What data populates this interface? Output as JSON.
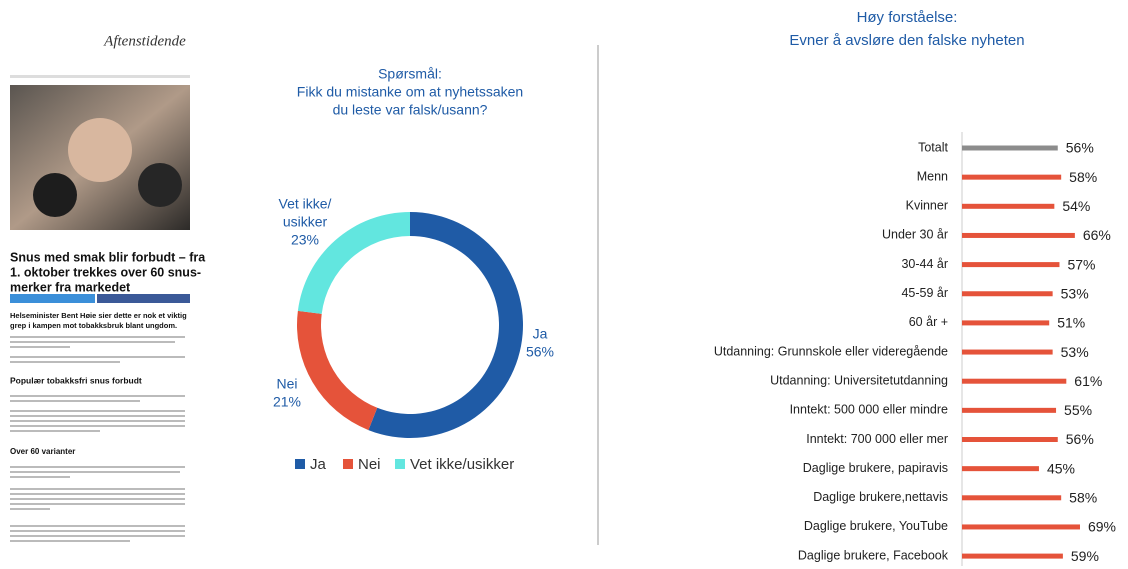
{
  "article": {
    "masthead": "Aftenstidende",
    "headline": [
      "Snus med smak blir forbudt – fra",
      "1. oktober trekkes over 60 snus-",
      "merker fra markedet"
    ],
    "lead": [
      "Helseminister Bent Høie sier dette er nok et viktig",
      "grep i kampen mot tobakksbruk blant ungdom."
    ],
    "subheads": [
      "Populær tobakksfri snus forbudt",
      "Over 60 varianter"
    ]
  },
  "chart_data": [
    {
      "type": "donut",
      "title": [
        "Spørsmål:",
        "Fikk du mistanke om at nyhetssaken",
        "du leste var falsk/usann?"
      ],
      "categories": [
        "Ja",
        "Nei",
        "Vet ikke/usikker"
      ],
      "category_labels": [
        [
          "Ja"
        ],
        [
          "Nei"
        ],
        [
          "Vet ikke/",
          "usikker"
        ]
      ],
      "values": [
        56,
        21,
        23
      ],
      "value_labels": [
        "56%",
        "21%",
        "23%"
      ],
      "colors": [
        "#1f5ba6",
        "#e5533a",
        "#62e6df"
      ],
      "legend": "bottom"
    },
    {
      "type": "barh",
      "title": [
        "Høy forståelse:",
        "Evner å avsløre den falske nyheten"
      ],
      "categories": [
        "Totalt",
        "Menn",
        "Kvinner",
        "Under 30 år",
        "30-44 år",
        "45-59 år",
        "60 år +",
        "Utdanning: Grunnskole eller videregående",
        "Utdanning: Universitetutdanning",
        "Inntekt: 500 000 eller mindre",
        "Inntekt: 700 000 eller mer",
        "Daglige brukere, papiravis",
        "Daglige brukere,nettavis",
        "Daglige brukere, YouTube",
        "Daglige brukere, Facebook"
      ],
      "values": [
        56,
        58,
        54,
        66,
        57,
        53,
        51,
        53,
        61,
        55,
        56,
        45,
        58,
        69,
        59
      ],
      "value_labels": [
        "56%",
        "58%",
        "54%",
        "66%",
        "57%",
        "53%",
        "51%",
        "53%",
        "61%",
        "55%",
        "56%",
        "45%",
        "58%",
        "69%",
        "59%"
      ],
      "colors": [
        "#8c8c8c",
        "#e5533a",
        "#e5533a",
        "#e5533a",
        "#e5533a",
        "#e5533a",
        "#e5533a",
        "#e5533a",
        "#e5533a",
        "#e5533a",
        "#e5533a",
        "#e5533a",
        "#e5533a",
        "#e5533a",
        "#e5533a"
      ]
    }
  ]
}
